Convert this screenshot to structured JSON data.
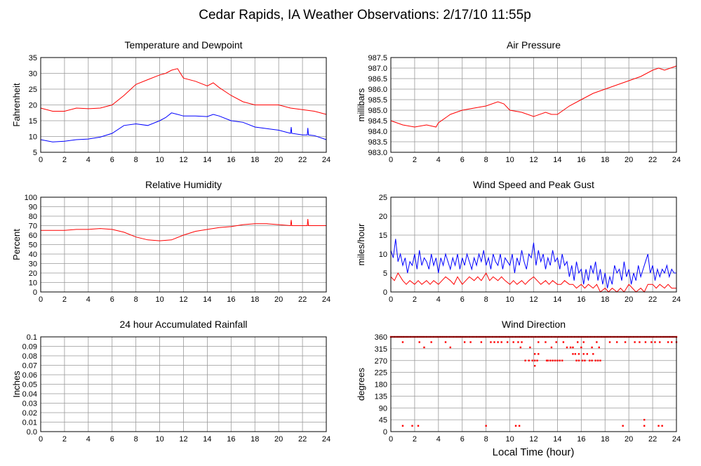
{
  "page": {
    "title": "Cedar Rapids, IA Weather Observations: 2/17/10 11:55p",
    "xlabel": "Local Time (hour)"
  },
  "colors": {
    "red": "#ff0000",
    "blue": "#0000ff",
    "grid": "#999999",
    "frame": "#000000"
  },
  "chart_data": [
    {
      "type": "line",
      "title": "Temperature and Dewpoint",
      "ylabel": "Fahrenheit",
      "xlim": [
        0,
        24
      ],
      "ylim": [
        5,
        35
      ],
      "xticks": [
        0,
        2,
        4,
        6,
        8,
        10,
        12,
        14,
        16,
        18,
        20,
        22,
        24
      ],
      "yticks": [
        5,
        10,
        15,
        20,
        25,
        30,
        35
      ],
      "grid": true,
      "series": [
        {
          "color": "red",
          "x": [
            0,
            1,
            2,
            3,
            4,
            5,
            6,
            7,
            8,
            9,
            10,
            10.5,
            11,
            11.5,
            12,
            13,
            14,
            14.5,
            15,
            16,
            17,
            18,
            19,
            20,
            21,
            22,
            23,
            24
          ],
          "y": [
            19,
            18,
            18,
            19,
            18.8,
            19,
            20,
            23,
            26.5,
            28,
            29.5,
            30,
            31,
            31.5,
            28.5,
            27.5,
            26,
            27,
            25.5,
            23,
            21,
            20,
            20,
            20,
            19,
            18.5,
            18,
            17
          ]
        },
        {
          "color": "blue",
          "x": [
            0,
            1,
            2,
            3,
            4,
            5,
            6,
            7,
            8,
            9,
            10,
            10.5,
            11,
            11.5,
            12,
            13,
            14,
            14.5,
            15,
            16,
            17,
            18,
            19,
            20,
            21,
            21.05,
            21.1,
            22,
            22.4,
            22.45,
            22.5,
            23,
            24
          ],
          "y": [
            9,
            8.3,
            8.5,
            9,
            9.2,
            9.8,
            11,
            13.5,
            14,
            13.5,
            15,
            16,
            17.5,
            17,
            16.5,
            16.5,
            16.3,
            17,
            16.5,
            15,
            14.5,
            13,
            12.5,
            12,
            11,
            13,
            11,
            10.5,
            10.5,
            12.7,
            10.5,
            10.3,
            9
          ]
        }
      ]
    },
    {
      "type": "line",
      "title": "Air Pressure",
      "ylabel": "millibars",
      "xlim": [
        0,
        24
      ],
      "ylim": [
        983.0,
        987.5
      ],
      "xticks": [
        0,
        2,
        4,
        6,
        8,
        10,
        12,
        14,
        16,
        18,
        20,
        22,
        24
      ],
      "yticks": [
        "983.0",
        "983.5",
        "984.0",
        "984.5",
        "985.0",
        "985.5",
        "986.0",
        "986.5",
        "987.0",
        "987.5"
      ],
      "grid": true,
      "series": [
        {
          "color": "red",
          "x": [
            0,
            1,
            2,
            3,
            3.8,
            4,
            5,
            6,
            7,
            8,
            9,
            9.5,
            10,
            11,
            12,
            13,
            13.5,
            14,
            15,
            16,
            17,
            18,
            19,
            20,
            21,
            22,
            22.5,
            23,
            24
          ],
          "y": [
            984.5,
            984.3,
            984.2,
            984.3,
            984.2,
            984.4,
            984.8,
            985.0,
            985.1,
            985.2,
            985.4,
            985.3,
            985.0,
            984.9,
            984.7,
            984.9,
            984.8,
            984.8,
            985.2,
            985.5,
            985.8,
            986.0,
            986.2,
            986.4,
            986.6,
            986.9,
            987.0,
            986.9,
            987.1
          ]
        }
      ]
    },
    {
      "type": "line",
      "title": "Relative Humidity",
      "ylabel": "Percent",
      "xlim": [
        0,
        24
      ],
      "ylim": [
        0,
        100
      ],
      "xticks": [
        0,
        2,
        4,
        6,
        8,
        10,
        12,
        14,
        16,
        18,
        20,
        22,
        24
      ],
      "yticks": [
        0,
        10,
        20,
        30,
        40,
        50,
        60,
        70,
        80,
        90,
        100
      ],
      "grid": true,
      "series": [
        {
          "color": "red",
          "x": [
            0,
            1,
            2,
            3,
            4,
            5,
            6,
            7,
            8,
            9,
            10,
            11,
            12,
            13,
            14,
            15,
            16,
            17,
            18,
            19,
            20,
            21,
            21.05,
            21.1,
            22,
            22.4,
            22.45,
            22.5,
            23,
            24
          ],
          "y": [
            65,
            65,
            65,
            66,
            66,
            67,
            66,
            63,
            58,
            55,
            54,
            55,
            60,
            64,
            66,
            68,
            69,
            71,
            72,
            72,
            71,
            70,
            76,
            70,
            70,
            70,
            77,
            70,
            70,
            70
          ]
        }
      ]
    },
    {
      "type": "line",
      "title": "Wind Speed and Peak Gust",
      "ylabel": "miles/hour",
      "xlim": [
        0,
        24
      ],
      "ylim": [
        0,
        25
      ],
      "xticks": [
        0,
        2,
        4,
        6,
        8,
        10,
        12,
        14,
        16,
        18,
        20,
        22,
        24
      ],
      "yticks": [
        0,
        5,
        10,
        15,
        20,
        25
      ],
      "grid": true,
      "series": [
        {
          "color": "blue",
          "x": [
            0,
            0.2,
            0.4,
            0.6,
            0.8,
            1,
            1.2,
            1.4,
            1.6,
            1.8,
            2,
            2.2,
            2.4,
            2.6,
            2.8,
            3,
            3.2,
            3.4,
            3.6,
            3.8,
            4,
            4.2,
            4.4,
            4.6,
            4.8,
            5,
            5.2,
            5.4,
            5.6,
            5.8,
            6,
            6.2,
            6.4,
            6.6,
            6.8,
            7,
            7.2,
            7.4,
            7.6,
            7.8,
            8,
            8.2,
            8.4,
            8.6,
            8.8,
            9,
            9.2,
            9.4,
            9.6,
            9.8,
            10,
            10.2,
            10.4,
            10.6,
            10.8,
            11,
            11.2,
            11.4,
            11.6,
            11.8,
            12,
            12.2,
            12.4,
            12.6,
            12.8,
            13,
            13.2,
            13.4,
            13.6,
            13.8,
            14,
            14.2,
            14.4,
            14.6,
            14.8,
            15,
            15.2,
            15.4,
            15.6,
            15.8,
            16,
            16.2,
            16.4,
            16.6,
            16.8,
            17,
            17.2,
            17.4,
            17.6,
            17.8,
            18,
            18.2,
            18.4,
            18.6,
            18.8,
            19,
            19.2,
            19.4,
            19.6,
            19.8,
            20,
            20.2,
            20.4,
            20.6,
            20.8,
            21,
            21.2,
            21.4,
            21.6,
            21.8,
            22,
            22.2,
            22.4,
            22.6,
            22.8,
            23,
            23.2,
            23.4,
            23.6,
            23.8,
            24
          ],
          "y": [
            11,
            9,
            14,
            8,
            10,
            7,
            9,
            5,
            8,
            7,
            10,
            6,
            11,
            7,
            9,
            8,
            6,
            10,
            7,
            9,
            5,
            9,
            7,
            10,
            8,
            6,
            9,
            7,
            10,
            6,
            9,
            7,
            10,
            8,
            6,
            9,
            7,
            10,
            8,
            11,
            7,
            9,
            6,
            10,
            8,
            7,
            10,
            6,
            9,
            8,
            7,
            10,
            5,
            9,
            7,
            11,
            8,
            6,
            10,
            9,
            13,
            7,
            11,
            8,
            10,
            6,
            9,
            7,
            11,
            8,
            9,
            6,
            10,
            7,
            8,
            4,
            7,
            3,
            8,
            5,
            6,
            2,
            6,
            3,
            7,
            5,
            8,
            3,
            6,
            2,
            5,
            1,
            4,
            2,
            7,
            5,
            6,
            3,
            8,
            4,
            6,
            2,
            5,
            3,
            7,
            4,
            6,
            8,
            10,
            5,
            7,
            3,
            6,
            4,
            6,
            5,
            7,
            4,
            6,
            5,
            5
          ]
        },
        {
          "color": "red",
          "x": [
            0,
            0.3,
            0.6,
            1,
            1.3,
            1.6,
            2,
            2.3,
            2.6,
            3,
            3.3,
            3.6,
            4,
            4.3,
            4.6,
            5,
            5.3,
            5.6,
            6,
            6.3,
            6.6,
            7,
            7.3,
            7.6,
            8,
            8.3,
            8.6,
            9,
            9.3,
            9.6,
            10,
            10.3,
            10.6,
            11,
            11.3,
            11.6,
            12,
            12.3,
            12.6,
            13,
            13.3,
            13.6,
            14,
            14.3,
            14.6,
            15,
            15.3,
            15.6,
            16,
            16.3,
            16.6,
            17,
            17.3,
            17.6,
            18,
            18.3,
            18.6,
            19,
            19.3,
            19.6,
            20,
            20.3,
            20.6,
            21,
            21.3,
            21.6,
            22,
            22.3,
            22.6,
            23,
            23.3,
            23.6,
            24
          ],
          "y": [
            4,
            3,
            5,
            3,
            2,
            3,
            2,
            3,
            2,
            3,
            2,
            3,
            2,
            3,
            4,
            3,
            2,
            4,
            2,
            3,
            4,
            3,
            4,
            3,
            5,
            3,
            4,
            3,
            4,
            3,
            2,
            3,
            2,
            3,
            2,
            3,
            4,
            3,
            2,
            3,
            2,
            3,
            2,
            2,
            3,
            2,
            2,
            1,
            2,
            1,
            2,
            1,
            2,
            0,
            1,
            0,
            1,
            0,
            1,
            0,
            2,
            1,
            0,
            1,
            0,
            2,
            2,
            1,
            2,
            1,
            2,
            1,
            1
          ]
        }
      ]
    },
    {
      "type": "line",
      "title": "24 hour Accumulated Rainfall",
      "ylabel": "Inches",
      "xlim": [
        0,
        24
      ],
      "ylim": [
        0,
        0.1
      ],
      "xticks": [
        0,
        2,
        4,
        6,
        8,
        10,
        12,
        14,
        16,
        18,
        20,
        22,
        24
      ],
      "yticks": [
        "0.0",
        "0.01",
        "0.02",
        "0.03",
        "0.04",
        "0.05",
        "0.06",
        "0.07",
        "0.08",
        "0.09",
        "0.1"
      ],
      "grid": true,
      "series": [
        {
          "color": "red",
          "x": [
            0,
            24
          ],
          "y": [
            0,
            0
          ]
        }
      ]
    },
    {
      "type": "scatter",
      "title": "Wind Direction",
      "ylabel": "degrees",
      "xlim": [
        0,
        24
      ],
      "ylim": [
        0,
        360
      ],
      "xticks": [
        0,
        2,
        4,
        6,
        8,
        10,
        12,
        14,
        16,
        18,
        20,
        22,
        24
      ],
      "yticks": [
        0,
        45,
        90,
        135,
        180,
        225,
        270,
        315,
        360
      ],
      "grid": true,
      "series": [
        {
          "color": "red",
          "band": {
            "x0": 0,
            "x1": 24,
            "step": 0.15,
            "y": 360
          },
          "x": [
            1,
            2.4,
            3.4,
            6.2,
            6.7,
            7.6,
            8.4,
            8.7,
            9,
            9.3,
            9.8,
            10.3,
            10.7,
            11,
            12.4,
            13,
            13.9,
            14.5,
            15.7,
            16.2,
            17.3,
            18.4,
            19,
            19.7,
            20.5,
            20.9,
            21.4,
            21.9,
            22.2,
            22.6,
            23.3,
            23.6,
            24,
            4.6,
            5,
            2.8,
            10.9,
            11.7,
            13.5,
            14.8,
            15.1,
            15.3,
            16,
            16.9,
            17.5,
            12.1,
            12.4,
            11.3,
            11.6,
            11.9,
            12.1,
            12.3,
            13.1,
            13.2,
            13.4,
            13.6,
            13.8,
            14,
            14.2,
            14.4,
            15.6,
            15.8,
            16.1,
            16.3,
            16.7,
            16.9,
            17.2,
            17.4,
            17.6,
            15.3,
            15.5,
            15.8,
            16.2,
            16.5,
            17,
            12.1,
            1,
            1.8,
            2.3,
            8,
            10.5,
            10.8,
            19.5,
            21.3,
            21.3,
            22.5,
            22.8
          ],
          "y": [
            340,
            340,
            340,
            340,
            340,
            340,
            340,
            340,
            340,
            340,
            340,
            340,
            340,
            340,
            340,
            340,
            340,
            340,
            340,
            340,
            340,
            340,
            340,
            340,
            340,
            340,
            340,
            340,
            340,
            340,
            340,
            340,
            340,
            340,
            320,
            320,
            320,
            320,
            320,
            320,
            320,
            320,
            320,
            320,
            320,
            295,
            295,
            270,
            270,
            270,
            270,
            270,
            270,
            270,
            270,
            270,
            270,
            270,
            270,
            270,
            270,
            270,
            270,
            270,
            270,
            270,
            270,
            270,
            270,
            295,
            295,
            295,
            295,
            295,
            295,
            250,
            22,
            22,
            22,
            22,
            22,
            22,
            22,
            45,
            22,
            22,
            22
          ]
        }
      ]
    }
  ]
}
